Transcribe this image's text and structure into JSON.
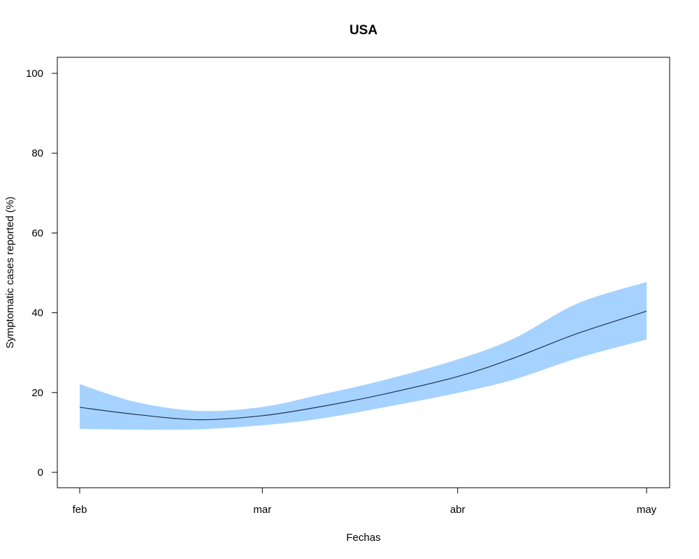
{
  "chart_data": {
    "type": "area",
    "title": "USA",
    "xlabel": "Fechas",
    "ylabel": "Symptomatic cases reported (%)",
    "xlim": [
      "2020-02-01",
      "2020-05-01"
    ],
    "ylim": [
      0,
      100
    ],
    "x_ticks": [
      "feb",
      "mar",
      "abr",
      "may"
    ],
    "y_ticks": [
      "0",
      "20",
      "40",
      "60",
      "80",
      "100"
    ],
    "x": [
      "2020-02-01",
      "2020-02-10",
      "2020-02-20",
      "2020-03-01",
      "2020-03-10",
      "2020-03-20",
      "2020-04-01",
      "2020-04-10",
      "2020-04-20",
      "2020-05-01"
    ],
    "series": [
      {
        "values": [
          16.3,
          14.5,
          13.2,
          14.2,
          16.4,
          19.5,
          24.0,
          28.7,
          34.8,
          40.4
        ]
      }
    ],
    "confidence_band": {
      "lower": [
        10.9,
        10.7,
        10.8,
        11.8,
        13.4,
        16.2,
        19.9,
        23.3,
        28.6,
        33.3
      ],
      "upper": [
        22.1,
        17.6,
        15.4,
        16.4,
        19.4,
        23.0,
        28.3,
        33.6,
        42.3,
        47.7
      ]
    },
    "colors": {
      "band": "#a6d2ff",
      "line": "#1f3650"
    },
    "grid": false,
    "legend": "none"
  }
}
